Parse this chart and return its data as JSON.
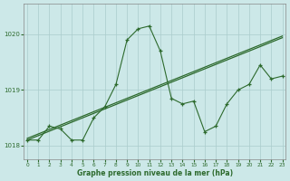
{
  "x": [
    0,
    1,
    2,
    3,
    4,
    5,
    6,
    7,
    8,
    9,
    10,
    11,
    12,
    13,
    14,
    15,
    16,
    17,
    18,
    19,
    20,
    21,
    22,
    23
  ],
  "y_main": [
    1018.1,
    1018.1,
    1018.35,
    1018.3,
    1018.1,
    1018.1,
    1018.5,
    1018.7,
    1019.1,
    1019.9,
    1020.1,
    1020.15,
    1019.7,
    1018.85,
    1018.75,
    1018.8,
    1018.25,
    1018.35,
    1018.75,
    1019.0,
    1019.1,
    1019.45,
    1019.2,
    1019.25
  ],
  "y_trend1": [
    1018.1,
    1018.18,
    1018.26,
    1018.34,
    1018.42,
    1018.5,
    1018.58,
    1018.66,
    1018.74,
    1018.82,
    1018.9,
    1018.98,
    1019.06,
    1019.14,
    1019.22,
    1019.3,
    1019.38,
    1019.46,
    1019.54,
    1019.62,
    1019.7,
    1019.78,
    1019.86,
    1019.94
  ],
  "y_trend2": [
    1018.13,
    1018.21,
    1018.29,
    1018.37,
    1018.45,
    1018.53,
    1018.61,
    1018.69,
    1018.77,
    1018.85,
    1018.93,
    1019.01,
    1019.09,
    1019.17,
    1019.25,
    1019.33,
    1019.41,
    1019.49,
    1019.57,
    1019.65,
    1019.73,
    1019.81,
    1019.89,
    1019.97
  ],
  "line_color": "#2d6a2d",
  "bg_color": "#cce8e8",
  "grid_color": "#aacccc",
  "text_color": "#2d6a2d",
  "xlabel": "Graphe pression niveau de la mer (hPa)",
  "ylim": [
    1017.75,
    1020.55
  ],
  "yticks": [
    1018,
    1019,
    1020
  ],
  "xticks": [
    0,
    1,
    2,
    3,
    4,
    5,
    6,
    7,
    8,
    9,
    10,
    11,
    12,
    13,
    14,
    15,
    16,
    17,
    18,
    19,
    20,
    21,
    22,
    23
  ],
  "xlim": [
    -0.3,
    23.3
  ]
}
